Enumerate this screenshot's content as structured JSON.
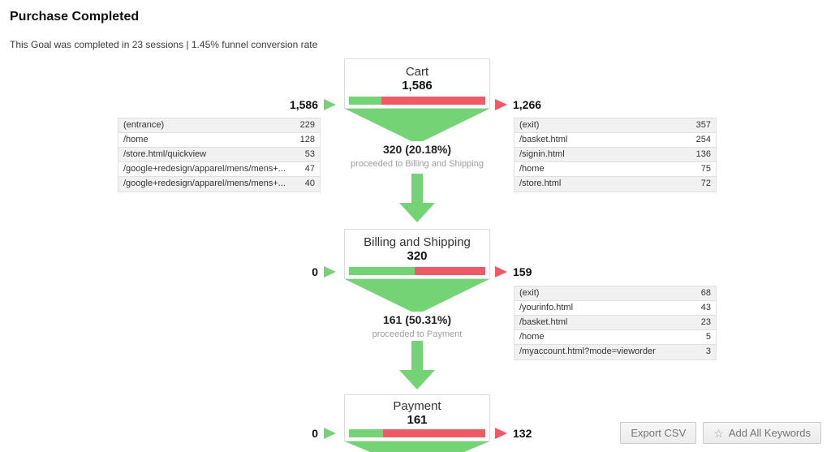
{
  "page": {
    "title": "Purchase Completed",
    "subtitle": "This Goal was completed in 23 sessions | 1.45% funnel conversion rate"
  },
  "colors": {
    "green": "#74d374",
    "red": "#ee5a66"
  },
  "steps": [
    {
      "id": "cart",
      "title": "Cart",
      "value": "1,586",
      "inflow": "1,586",
      "outflow": "1,266",
      "bar_green_pct": 24,
      "left_table": [
        {
          "label": "(entrance)",
          "value": "229"
        },
        {
          "label": "/home",
          "value": "128"
        },
        {
          "label": "/store.html/quickview",
          "value": "53"
        },
        {
          "label": "/google+redesign/apparel/mens/mens+...",
          "value": "47"
        },
        {
          "label": "/google+redesign/apparel/mens/mens+...",
          "value": "40"
        }
      ],
      "right_table": [
        {
          "label": "(exit)",
          "value": "357"
        },
        {
          "label": "/basket.html",
          "value": "254"
        },
        {
          "label": "/signin.html",
          "value": "136"
        },
        {
          "label": "/home",
          "value": "75"
        },
        {
          "label": "/store.html",
          "value": "72"
        }
      ],
      "proceed_value": "320 (20.18%)",
      "proceed_label": "proceeded to Billing and Shipping"
    },
    {
      "id": "billing",
      "title": "Billing and Shipping",
      "value": "320",
      "inflow": "0",
      "outflow": "159",
      "bar_green_pct": 48,
      "right_table": [
        {
          "label": "(exit)",
          "value": "68"
        },
        {
          "label": "/yourinfo.html",
          "value": "43"
        },
        {
          "label": "/basket.html",
          "value": "23"
        },
        {
          "label": "/home",
          "value": "5"
        },
        {
          "label": "/myaccount.html?mode=vieworder",
          "value": "3"
        }
      ],
      "proceed_value": "161 (50.31%)",
      "proceed_label": "proceeded to Payment"
    },
    {
      "id": "payment",
      "title": "Payment",
      "value": "161",
      "inflow": "0",
      "outflow": "132",
      "bar_green_pct": 25
    }
  ],
  "chart_data": {
    "type": "funnel",
    "title": "Purchase Completed",
    "steps": [
      "Cart",
      "Billing and Shipping",
      "Payment"
    ],
    "values": [
      1586,
      320,
      161
    ],
    "entrances": [
      1586,
      0,
      0
    ],
    "exits": [
      1266,
      159,
      132
    ],
    "proceeded": [
      320,
      161
    ],
    "proceeded_pct": [
      "20.18%",
      "50.31%"
    ]
  },
  "actions": {
    "export_csv": "Export CSV",
    "add_all_keywords": "Add All Keywords"
  }
}
